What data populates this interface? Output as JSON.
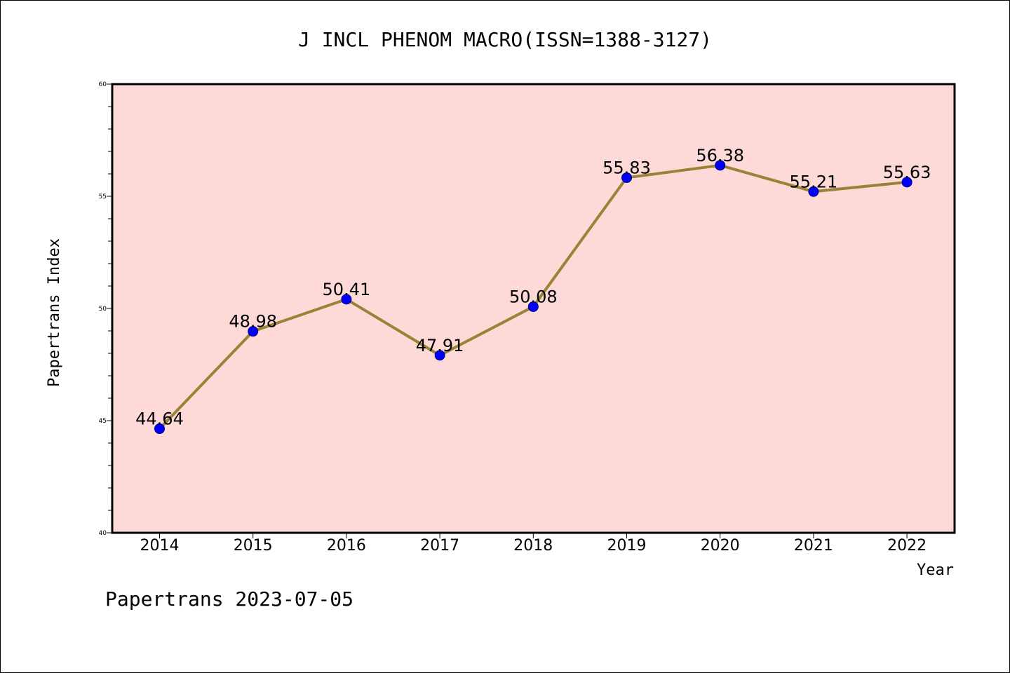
{
  "colors": {
    "plot_background": "#fddad8",
    "line": "#9a8237",
    "marker": "#0000ff",
    "marker_edge": "#000080"
  },
  "footer": "Papertrans 2023-07-05",
  "chart_data": {
    "type": "line",
    "title": "J INCL PHENOM MACRO(ISSN=1388-3127)",
    "xlabel": "Year",
    "ylabel": "Papertrans Index",
    "categories": [
      "2014",
      "2015",
      "2016",
      "2017",
      "2018",
      "2019",
      "2020",
      "2021",
      "2022"
    ],
    "series": [
      {
        "values": [
          44.64,
          48.98,
          50.41,
          47.91,
          50.08,
          55.83,
          56.38,
          55.21,
          55.63
        ],
        "labels": [
          "44.64",
          "48.98",
          "50.41",
          "47.91",
          "50.08",
          "55.83",
          "56.38",
          "55.21",
          "55.63"
        ]
      }
    ],
    "ylim": [
      40,
      60
    ],
    "yticks": [
      40,
      45,
      50,
      55,
      60
    ],
    "grid": false,
    "legend": "none"
  }
}
